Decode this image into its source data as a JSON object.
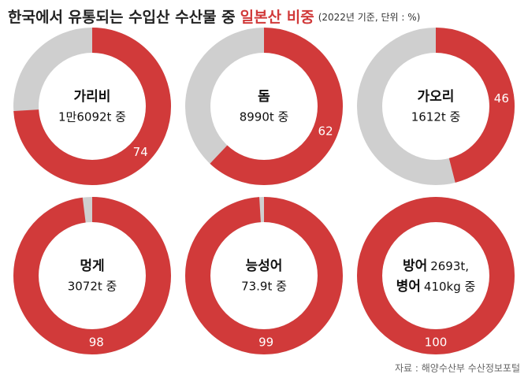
{
  "header": {
    "title": "한국에서 유통되는 수입산 수산물 중",
    "highlight": "일본산 비중",
    "note": "(2022년 기준, 단위 : %)"
  },
  "source": "자료 : 해양수산부 수산정보포털",
  "colors": {
    "japan": "#d13a3a",
    "rest": "#cfcfcf"
  },
  "chart_data": [
    {
      "type": "pie",
      "title": "가리비",
      "subtitle": "1만6092t 중",
      "values": [
        74
      ]
    },
    {
      "type": "pie",
      "title": "돔",
      "subtitle": "8990t 중",
      "values": [
        62
      ]
    },
    {
      "type": "pie",
      "title": "가오리",
      "subtitle": "1612t 중",
      "values": [
        46
      ]
    },
    {
      "type": "pie",
      "title": "멍게",
      "subtitle": "3072t 중",
      "values": [
        98
      ]
    },
    {
      "type": "pie",
      "title": "능성어",
      "subtitle": "73.9t 중",
      "values": [
        99
      ]
    },
    {
      "type": "pie",
      "lines": [
        {
          "name": "방어",
          "amount": "2693t,"
        },
        {
          "name": "병어",
          "amount": "410kg 중"
        }
      ],
      "values": [
        100
      ]
    }
  ]
}
